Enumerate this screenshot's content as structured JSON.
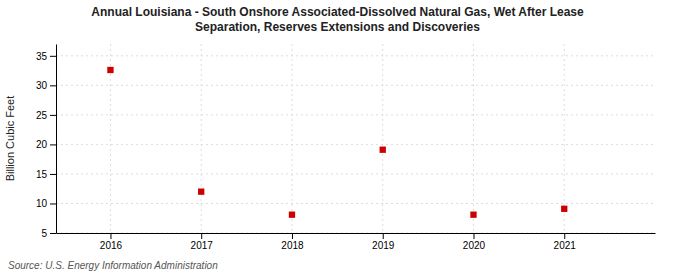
{
  "chart_data": {
    "type": "scatter",
    "title": "Annual Louisiana - South Onshore Associated-Dissolved Natural Gas, Wet After Lease\nSeparation, Reserves Extensions and Discoveries",
    "ylabel": "Billion Cubic Feet",
    "source": "Source: U.S. Energy Information Administration",
    "x": [
      2016,
      2017,
      2018,
      2019,
      2020,
      2021
    ],
    "values": [
      32.6,
      12.0,
      8.1,
      19.1,
      8.1,
      9.1
    ],
    "color": "#cc0000",
    "marker": "square",
    "xlim": [
      2015.4,
      2022.0
    ],
    "xticks": [
      2016,
      2017,
      2018,
      2019,
      2020,
      2021
    ],
    "ylim": [
      5,
      37
    ],
    "yticks": [
      5,
      10,
      15,
      20,
      25,
      30,
      35
    ],
    "grid": true
  }
}
